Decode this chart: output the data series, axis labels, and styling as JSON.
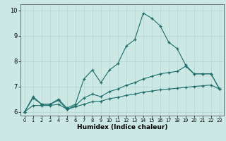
{
  "xlabel": "Humidex (Indice chaleur)",
  "xlim": [
    -0.5,
    23.5
  ],
  "ylim": [
    5.85,
    10.25
  ],
  "bg_color": "#cce8e4",
  "grid_color": "#b8d8d4",
  "line_color": "#1a6e6a",
  "xticks": [
    0,
    1,
    2,
    3,
    4,
    5,
    6,
    7,
    8,
    9,
    10,
    11,
    12,
    13,
    14,
    15,
    16,
    17,
    18,
    19,
    20,
    21,
    22,
    23
  ],
  "yticks": [
    6,
    7,
    8,
    9,
    10
  ],
  "line1_x": [
    0,
    1,
    2,
    3,
    4,
    5,
    6,
    7,
    8,
    9,
    10,
    11,
    12,
    13,
    14,
    15,
    16,
    17,
    18,
    19,
    20,
    21,
    22,
    23
  ],
  "line1_y": [
    6.0,
    6.6,
    6.3,
    6.3,
    6.5,
    6.15,
    6.3,
    7.3,
    7.65,
    7.15,
    7.65,
    7.9,
    8.6,
    8.85,
    9.9,
    9.7,
    9.4,
    8.75,
    8.5,
    7.85,
    7.5,
    7.5,
    7.5,
    6.9
  ],
  "line2_x": [
    0,
    1,
    2,
    3,
    4,
    5,
    6,
    7,
    8,
    9,
    10,
    11,
    12,
    13,
    14,
    15,
    16,
    17,
    18,
    19,
    20,
    21,
    22,
    23
  ],
  "line2_y": [
    6.0,
    6.55,
    6.3,
    6.3,
    6.45,
    6.1,
    6.25,
    6.55,
    6.7,
    6.6,
    6.8,
    6.9,
    7.05,
    7.15,
    7.3,
    7.4,
    7.5,
    7.55,
    7.6,
    7.8,
    7.5,
    7.5,
    7.5,
    6.9
  ],
  "line3_x": [
    0,
    1,
    2,
    3,
    4,
    5,
    6,
    7,
    8,
    9,
    10,
    11,
    12,
    13,
    14,
    15,
    16,
    17,
    18,
    19,
    20,
    21,
    22,
    23
  ],
  "line3_y": [
    6.0,
    6.25,
    6.25,
    6.25,
    6.3,
    6.1,
    6.2,
    6.3,
    6.4,
    6.42,
    6.52,
    6.57,
    6.65,
    6.7,
    6.78,
    6.82,
    6.87,
    6.9,
    6.93,
    6.97,
    7.0,
    7.03,
    7.06,
    6.9
  ]
}
